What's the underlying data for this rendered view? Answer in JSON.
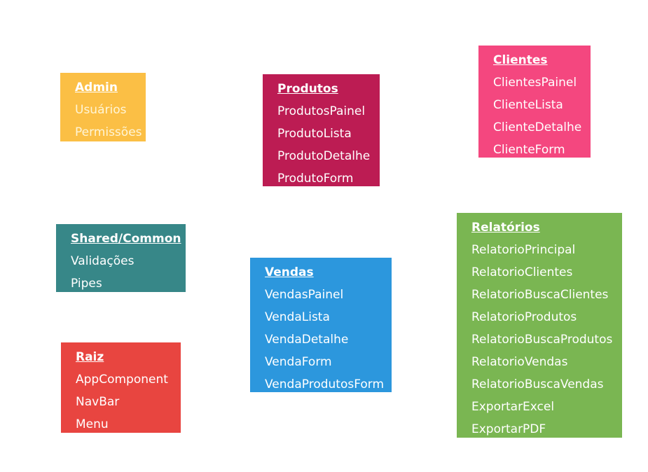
{
  "modules": {
    "admin": {
      "title": "Admin",
      "items": [
        "Usuários",
        "Permissões"
      ]
    },
    "produtos": {
      "title": "Produtos",
      "items": [
        "ProdutosPainel",
        "ProdutoLista",
        "ProdutoDetalhe",
        "ProdutoForm"
      ]
    },
    "clientes": {
      "title": "Clientes",
      "items": [
        "ClientesPainel",
        "ClienteLista",
        "ClienteDetalhe",
        "ClienteForm"
      ]
    },
    "shared": {
      "title": "Shared/Common",
      "items": [
        "Validações",
        "Pipes"
      ]
    },
    "vendas": {
      "title": "Vendas",
      "items": [
        "VendasPainel",
        "VendaLista",
        "VendaDetalhe",
        "VendaForm",
        "VendaProdutosForm"
      ]
    },
    "raiz": {
      "title": "Raiz",
      "items": [
        "AppComponent",
        "NavBar",
        "Menu"
      ]
    },
    "relatorios": {
      "title": "Relatórios",
      "items": [
        "RelatorioPrincipal",
        "RelatorioClientes",
        "RelatorioBuscaClientes",
        "RelatorioProdutos",
        "RelatorioBuscaProdutos",
        "RelatorioVendas",
        "RelatorioBuscaVendas",
        "ExportarExcel",
        "ExportarPDF"
      ]
    }
  },
  "colors": {
    "admin": "#fbbf45",
    "produtos": "#bc1c53",
    "clientes": "#f4477f",
    "shared": "#378788",
    "vendas": "#2c97dd",
    "raiz": "#e84540",
    "relatorios": "#7ab652"
  }
}
